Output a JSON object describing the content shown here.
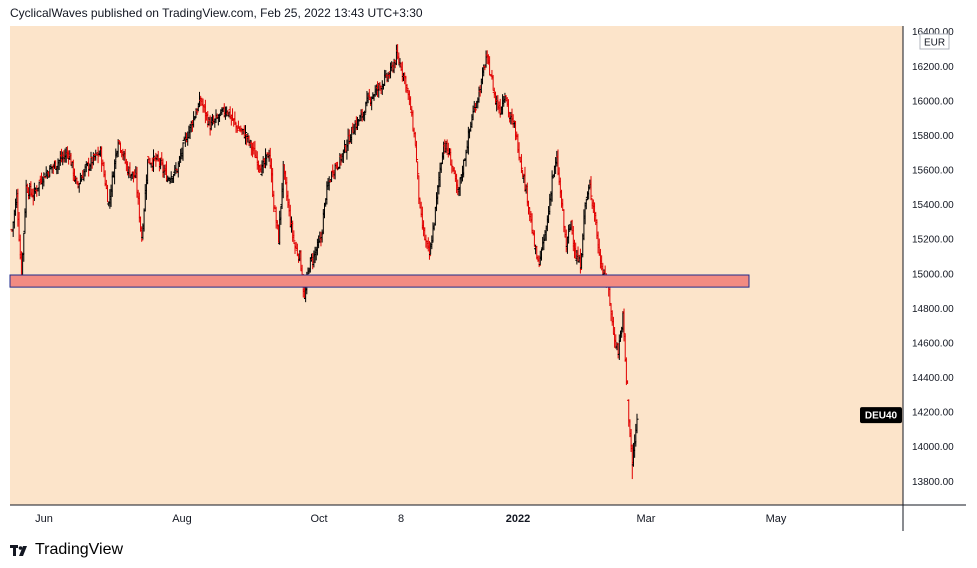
{
  "header": {
    "text": "CyclicalWaves published on TradingView.com, Feb 25, 2022 13:43 UTC+3:30"
  },
  "footer": {
    "brand": "TradingView",
    "logo_icon": "tradingview-logo-icon"
  },
  "colors": {
    "background": "#fce4ca",
    "up_bar": "#000000",
    "down_bar": "#e00000",
    "zone_fill": "#f28b82",
    "zone_border": "#1e2a8c",
    "ticker_badge_bg": "#000000"
  },
  "chart_data": {
    "type": "ohlc",
    "symbol": "DEU40",
    "currency": "EUR",
    "x_tick_labels": [
      "Jun",
      "Aug",
      "Oct",
      "8",
      "2022",
      "Mar",
      "May"
    ],
    "y_tick_labels": [
      "16400.00",
      "16200.00",
      "16000.00",
      "15800.00",
      "15600.00",
      "15400.00",
      "15200.00",
      "15000.00",
      "14800.00",
      "14600.00",
      "14400.00",
      "14200.00",
      "14000.00",
      "13800.00"
    ],
    "ylim": [
      13660,
      16430
    ],
    "support_zone": {
      "low": 14920,
      "high": 14990
    },
    "price_path": [
      [
        0,
        15250
      ],
      [
        4,
        15450
      ],
      [
        8,
        14980
      ],
      [
        12,
        15500
      ],
      [
        18,
        15450
      ],
      [
        25,
        15550
      ],
      [
        32,
        15600
      ],
      [
        40,
        15650
      ],
      [
        48,
        15700
      ],
      [
        55,
        15500
      ],
      [
        62,
        15600
      ],
      [
        68,
        15650
      ],
      [
        75,
        15700
      ],
      [
        82,
        15400
      ],
      [
        90,
        15780
      ],
      [
        98,
        15600
      ],
      [
        105,
        15550
      ],
      [
        110,
        15200
      ],
      [
        115,
        15650
      ],
      [
        124,
        15650
      ],
      [
        132,
        15550
      ],
      [
        140,
        15600
      ],
      [
        146,
        15750
      ],
      [
        154,
        15900
      ],
      [
        160,
        16000
      ],
      [
        168,
        15850
      ],
      [
        175,
        15900
      ],
      [
        182,
        15950
      ],
      [
        190,
        15850
      ],
      [
        198,
        15800
      ],
      [
        205,
        15700
      ],
      [
        212,
        15600
      ],
      [
        218,
        15700
      ],
      [
        222,
        15400
      ],
      [
        226,
        15200
      ],
      [
        230,
        15600
      ],
      [
        236,
        15300
      ],
      [
        240,
        15150
      ],
      [
        244,
        15100
      ],
      [
        248,
        14850
      ],
      [
        252,
        15050
      ],
      [
        256,
        15100
      ],
      [
        262,
        15200
      ],
      [
        266,
        15450
      ],
      [
        272,
        15600
      ],
      [
        278,
        15650
      ],
      [
        284,
        15750
      ],
      [
        290,
        15850
      ],
      [
        296,
        15900
      ],
      [
        302,
        16000
      ],
      [
        308,
        16050
      ],
      [
        314,
        16100
      ],
      [
        320,
        16150
      ],
      [
        326,
        16250
      ],
      [
        330,
        16200
      ],
      [
        334,
        16100
      ],
      [
        338,
        15950
      ],
      [
        342,
        15750
      ],
      [
        346,
        15350
      ],
      [
        350,
        15200
      ],
      [
        354,
        15100
      ],
      [
        358,
        15300
      ],
      [
        362,
        15550
      ],
      [
        366,
        15750
      ],
      [
        370,
        15700
      ],
      [
        374,
        15600
      ],
      [
        378,
        15450
      ],
      [
        382,
        15600
      ],
      [
        386,
        15750
      ],
      [
        390,
        15900
      ],
      [
        394,
        16000
      ],
      [
        398,
        16100
      ],
      [
        402,
        16250
      ],
      [
        406,
        16150
      ],
      [
        410,
        16000
      ],
      [
        414,
        15950
      ],
      [
        418,
        16050
      ],
      [
        422,
        15900
      ],
      [
        426,
        15850
      ],
      [
        430,
        15700
      ],
      [
        434,
        15550
      ],
      [
        438,
        15400
      ],
      [
        442,
        15200
      ],
      [
        446,
        15050
      ],
      [
        450,
        15150
      ],
      [
        454,
        15300
      ],
      [
        458,
        15550
      ],
      [
        462,
        15650
      ],
      [
        466,
        15400
      ],
      [
        470,
        15150
      ],
      [
        474,
        15300
      ],
      [
        478,
        15100
      ],
      [
        482,
        15050
      ],
      [
        486,
        15400
      ],
      [
        490,
        15500
      ],
      [
        494,
        15350
      ],
      [
        498,
        15100
      ],
      [
        502,
        15000
      ],
      [
        506,
        14900
      ],
      [
        510,
        14650
      ],
      [
        514,
        14550
      ],
      [
        518,
        14750
      ],
      [
        522,
        14250
      ],
      [
        526,
        13900
      ],
      [
        530,
        14150
      ]
    ],
    "ticker_last": 14180
  }
}
